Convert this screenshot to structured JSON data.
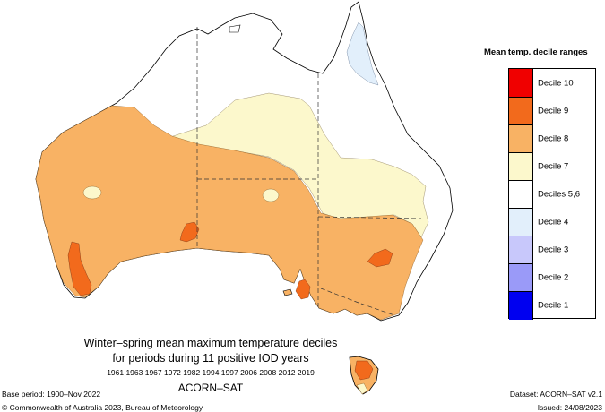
{
  "map": {
    "colors": {
      "decile_8": "#f8b264",
      "decile_7": "#fcf8cc",
      "decile_9": "#f26a1c",
      "decile_4": "#e2effb",
      "decile_5_6": "#ffffff"
    }
  },
  "legend": {
    "title": "Mean temp. decile ranges",
    "items": [
      {
        "label": "Decile 10",
        "color": "#f00000"
      },
      {
        "label": "Decile 9",
        "color": "#f26a1c"
      },
      {
        "label": "Decile 8",
        "color": "#f8b264"
      },
      {
        "label": "Decile 7",
        "color": "#fcf8cc"
      },
      {
        "label": "Deciles 5,6",
        "color": "#ffffff"
      },
      {
        "label": "Decile 4",
        "color": "#e2effb"
      },
      {
        "label": "Decile 3",
        "color": "#c8c8fb"
      },
      {
        "label": "Decile 2",
        "color": "#9a9af8"
      },
      {
        "label": "Decile 1",
        "color": "#0000f0"
      }
    ]
  },
  "title": {
    "line1": "Winter–spring mean maximum temperature deciles",
    "line2": "for periods during 11 positive IOD years",
    "years": "1961 1963 1967 1972 1982 1994 1997 2006 2008 2012 2019",
    "dataset_name": "ACORN–SAT"
  },
  "footer": {
    "base_period": "Base period: 1900–Nov 2022",
    "copyright": "© Commonwealth of Australia 2023, Bureau of Meteorology",
    "dataset": "Dataset: ACORN–SAT v2.1",
    "issued": "Issued: 24/08/2023"
  }
}
